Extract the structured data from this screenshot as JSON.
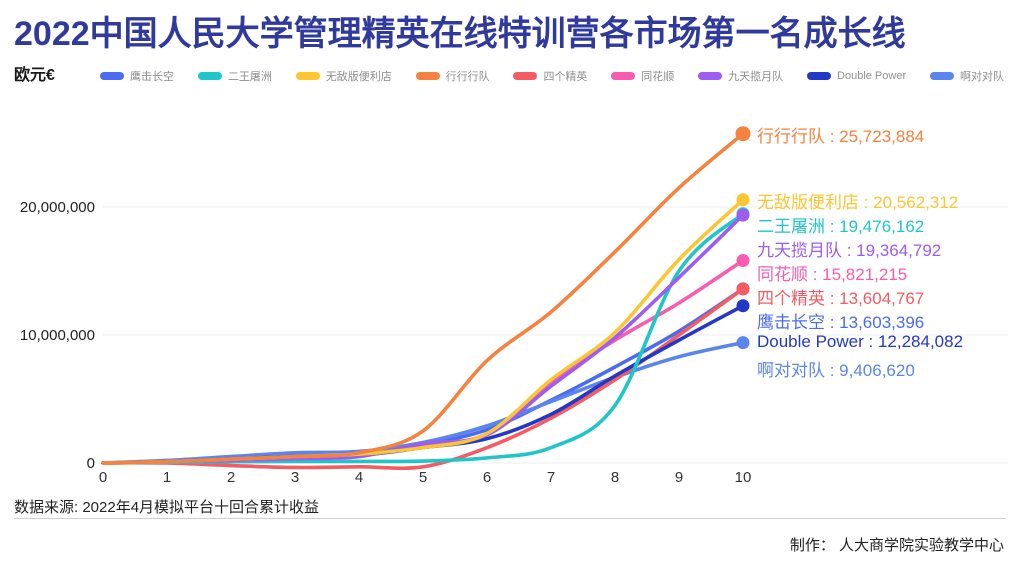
{
  "title": "2022中国人民大学管理精英在线特训营各市场第一名成长线",
  "y_axis_unit": "欧元€",
  "source_note": "数据来源: 2022年4月模拟平台十回合累计收益",
  "credit": "制作： 人大商学院实验教学中心",
  "colors": {
    "title": "#303A9C",
    "legend_text": "#8E8E8E",
    "grid_line": "#ECECEC",
    "axis_text": "#333333",
    "divider": "#D0D0D0"
  },
  "chart_data": {
    "type": "line",
    "x": [
      0,
      1,
      2,
      3,
      4,
      5,
      6,
      7,
      8,
      9,
      10
    ],
    "x_tick_labels": [
      "0",
      "1",
      "2",
      "3",
      "4",
      "5",
      "6",
      "7",
      "8",
      "9",
      "10"
    ],
    "xlabel": "",
    "ylabel": "欧元€",
    "ylim": [
      0,
      26000000
    ],
    "grid": true,
    "legend_position": "top",
    "y_ticks": [
      {
        "value": 0,
        "label": "0"
      },
      {
        "value": 10000000,
        "label": "10,000,000"
      },
      {
        "value": 20000000,
        "label": "20,000,000"
      }
    ],
    "series": [
      {
        "name": "鹰击长空",
        "color": "#4A6BF2",
        "final": "13,603,396",
        "label_y": 319,
        "values": [
          0,
          150000,
          350000,
          550000,
          600000,
          1400000,
          2600000,
          4900000,
          7500000,
          10300000,
          13603396
        ]
      },
      {
        "name": "二王屠洲",
        "color": "#1FC6C9",
        "final": "19,476,162",
        "label_y": 223,
        "values": [
          0,
          50000,
          100000,
          120000,
          120000,
          150000,
          400000,
          1200000,
          4500000,
          15000000,
          19476162
        ]
      },
      {
        "name": "无敌版便利店",
        "color": "#FBC62F",
        "final": "20,562,312",
        "label_y": 199,
        "values": [
          0,
          100000,
          300000,
          500000,
          700000,
          1200000,
          2300000,
          6500000,
          10200000,
          15900000,
          20562312
        ]
      },
      {
        "name": "行行行队",
        "color": "#F5823E",
        "final": "25,723,884",
        "label_y": 133,
        "values": [
          0,
          100000,
          300000,
          500000,
          800000,
          2500000,
          8000000,
          11800000,
          16500000,
          21500000,
          25723884
        ]
      },
      {
        "name": "四个精英",
        "color": "#F55B63",
        "final": "13,604,767",
        "label_y": 295,
        "values": [
          0,
          0,
          -200000,
          -350000,
          -300000,
          -300000,
          1200000,
          3500000,
          6500000,
          10000000,
          13604767
        ]
      },
      {
        "name": "同花顺",
        "color": "#F75CB0",
        "final": "15,821,215",
        "label_y": 271,
        "values": [
          0,
          100000,
          250000,
          450000,
          600000,
          1300000,
          2300000,
          6300000,
          9600000,
          12500000,
          15821215
        ]
      },
      {
        "name": "九天揽月队",
        "color": "#9E5CF1",
        "final": "19,364,792",
        "label_y": 247,
        "values": [
          0,
          100000,
          200000,
          350000,
          500000,
          1500000,
          2200000,
          6000000,
          9800000,
          14500000,
          19364792
        ]
      },
      {
        "name": "Double Power",
        "color": "#2438C8",
        "final": "12,284,082",
        "label_y": 343,
        "values": [
          0,
          100000,
          300000,
          500000,
          600000,
          1200000,
          1900000,
          3800000,
          6800000,
          9600000,
          12284082
        ]
      },
      {
        "name": "啊对对队",
        "color": "#5A85EF",
        "final": "9,406,620",
        "label_y": 367,
        "values": [
          0,
          200000,
          500000,
          800000,
          900000,
          1600000,
          2900000,
          4800000,
          6700000,
          8300000,
          9406620
        ]
      }
    ]
  }
}
